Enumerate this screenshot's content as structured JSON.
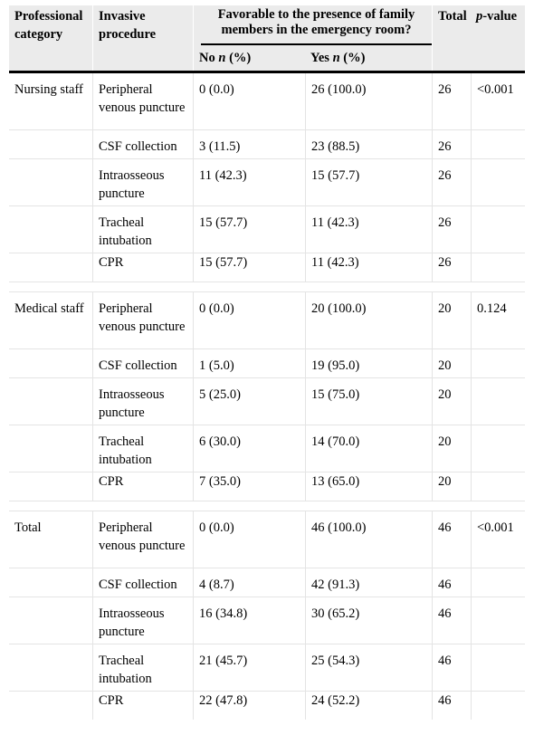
{
  "header": {
    "professional_category": "Professional category",
    "invasive_procedure": "Invasive procedure",
    "favorable": "Favorable to the presence of family members in the emergency room?",
    "no_prefix": "No ",
    "yes_prefix": "Yes ",
    "n_label": "n",
    "pct_label": " (%)",
    "total": "Total",
    "p_prefix": "p",
    "p_suffix": "-value"
  },
  "groups": [
    {
      "category": "Nursing staff",
      "p_value": "<0.001",
      "rows": [
        {
          "procedure": "Peripheral venous puncture",
          "no": "0 (0.0)",
          "yes": "26 (100.0)",
          "total": "26"
        },
        {
          "procedure": "CSF collection",
          "no": "3 (11.5)",
          "yes": "23 (88.5)",
          "total": "26"
        },
        {
          "procedure": "Intraosseous puncture",
          "no": "11 (42.3)",
          "yes": "15 (57.7)",
          "total": "26"
        },
        {
          "procedure": "Tracheal intubation",
          "no": "15 (57.7)",
          "yes": "11 (42.3)",
          "total": "26"
        },
        {
          "procedure": "CPR",
          "no": "15 (57.7)",
          "yes": "11 (42.3)",
          "total": "26"
        }
      ]
    },
    {
      "category": "Medical staff",
      "p_value": "0.124",
      "rows": [
        {
          "procedure": "Peripheral venous puncture",
          "no": "0 (0.0)",
          "yes": "20 (100.0)",
          "total": "20"
        },
        {
          "procedure": "CSF collection",
          "no": "1 (5.0)",
          "yes": "19 (95.0)",
          "total": "20"
        },
        {
          "procedure": "Intraosseous puncture",
          "no": "5 (25.0)",
          "yes": "15 (75.0)",
          "total": "20"
        },
        {
          "procedure": "Tracheal intubation",
          "no": "6 (30.0)",
          "yes": "14 (70.0)",
          "total": "20"
        },
        {
          "procedure": "CPR",
          "no": "7 (35.0)",
          "yes": "13 (65.0)",
          "total": "20"
        }
      ]
    },
    {
      "category": "Total",
      "p_value": "<0.001",
      "rows": [
        {
          "procedure": "Peripheral venous puncture",
          "no": "0 (0.0)",
          "yes": "46 (100.0)",
          "total": "46"
        },
        {
          "procedure": "CSF collection",
          "no": "4 (8.7)",
          "yes": "42 (91.3)",
          "total": "46"
        },
        {
          "procedure": "Intraosseous puncture",
          "no": "16 (34.8)",
          "yes": "30 (65.2)",
          "total": "46"
        },
        {
          "procedure": "Tracheal intubation",
          "no": "21 (45.7)",
          "yes": "25 (54.3)",
          "total": "46"
        },
        {
          "procedure": "CPR",
          "no": "22 (47.8)",
          "yes": "24 (52.2)",
          "total": "46"
        }
      ]
    }
  ]
}
